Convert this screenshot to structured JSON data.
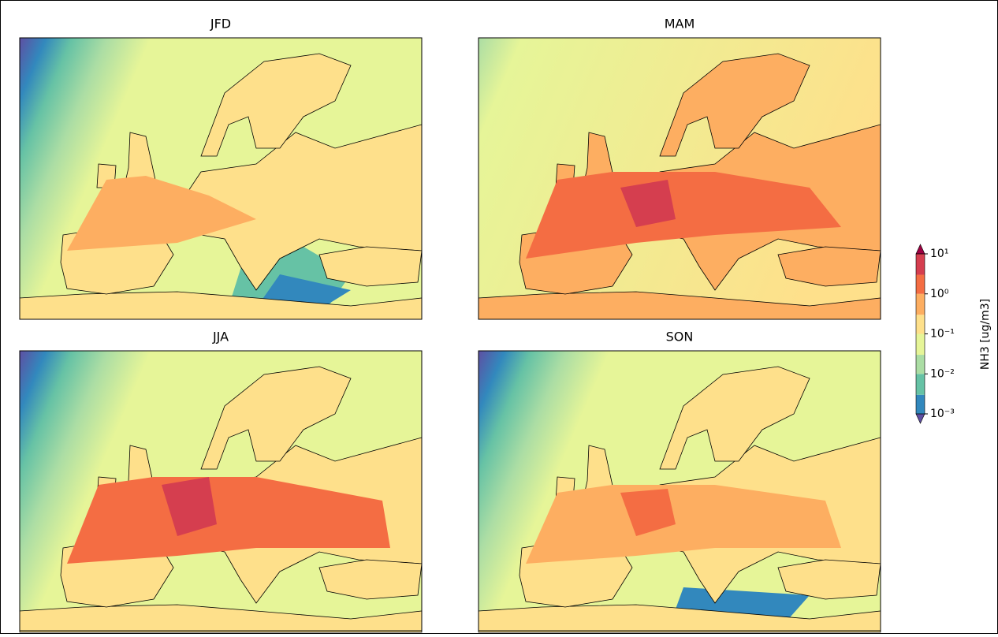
{
  "panels": [
    {
      "title": "JFD"
    },
    {
      "title": "MAM"
    },
    {
      "title": "JJA"
    },
    {
      "title": "SON"
    }
  ],
  "colorbar": {
    "label": "NH3 [ug/m3]",
    "scale": "log",
    "lim": [
      0.001,
      10
    ],
    "levels": [
      0.001,
      0.003,
      0.01,
      0.03,
      0.1,
      0.3,
      1,
      3,
      10
    ],
    "colors": [
      "#3288bd",
      "#66c2a5",
      "#abdda4",
      "#e6f598",
      "#fee08b",
      "#fdae61",
      "#f46d43",
      "#d53e4f"
    ],
    "under_color": "#5e4fa2",
    "over_color": "#9e0142",
    "ticks": [
      {
        "value": 10,
        "label": "10¹"
      },
      {
        "value": 1,
        "label": "10⁰"
      },
      {
        "value": 0.1,
        "label": "10⁻¹"
      },
      {
        "value": 0.01,
        "label": "10⁻²"
      },
      {
        "value": 0.001,
        "label": "10⁻³"
      }
    ]
  }
}
